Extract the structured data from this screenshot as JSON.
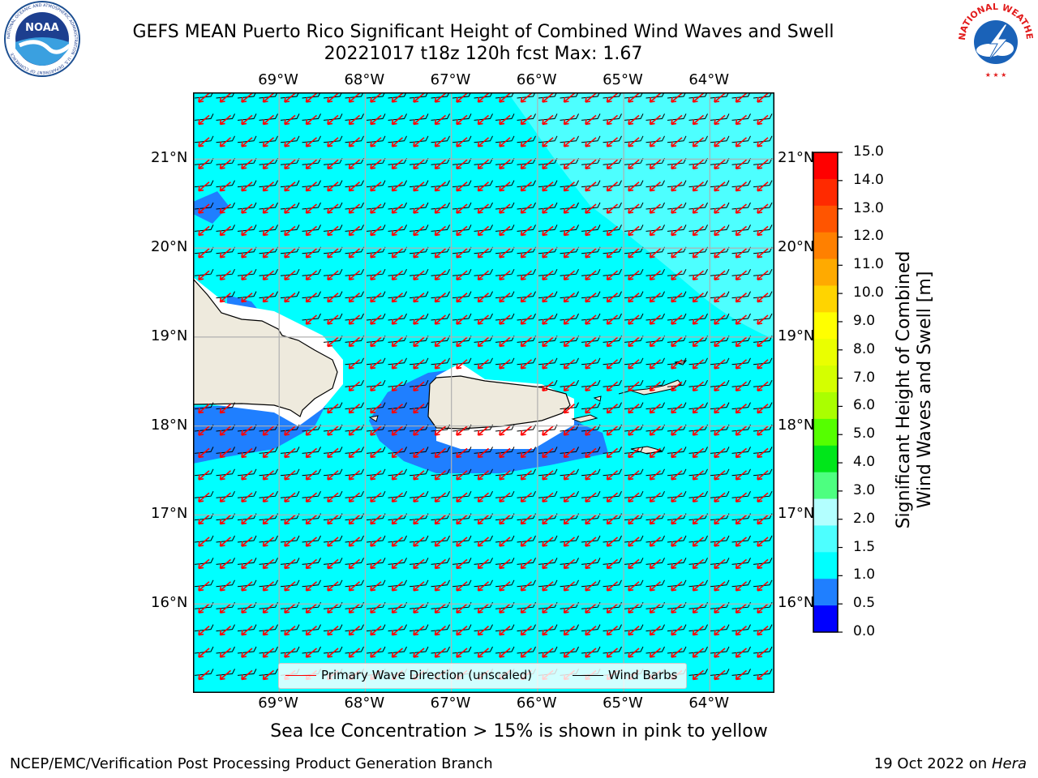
{
  "header": {
    "title_line1": "GEFS MEAN Puerto Rico Significant Height of Combined Wind Waves and Swell",
    "title_line2": "20221017 t18z 120h fcst   Max: 1.67"
  },
  "logos": {
    "noaa_text": "NOAA",
    "noaa_ring_text": "NATIONAL OCEANIC AND ATMOSPHERIC ADMINISTRATION · U.S. DEPARTMENT OF COMMERCE",
    "nws_ring_text": "NATIONAL WEATHER SERVICE"
  },
  "map": {
    "lon_labels": [
      "69°W",
      "68°W",
      "67°W",
      "66°W",
      "65°W",
      "64°W"
    ],
    "lat_labels": [
      "21°N",
      "20°N",
      "19°N",
      "18°N",
      "17°N",
      "16°N"
    ],
    "lon_values": [
      -69,
      -68,
      -67,
      -66,
      -65,
      -64
    ],
    "lat_values": [
      21,
      20,
      19,
      18,
      17,
      16
    ],
    "extent": {
      "lon_min": -70.0,
      "lon_max": -63.25,
      "lat_min": 15.0,
      "lat_max": 21.75
    },
    "vector_direction": "toward southwest",
    "legend": {
      "primary_wave": "Primary Wave Direction (unscaled)",
      "wind_barbs": "Wind Barbs"
    },
    "colors": {
      "ocean_main": "#00ffff",
      "ocean_high": "#4dffff",
      "ocean_low": "#1f7fff",
      "land": "#eeeadd",
      "arrow": "#ff0000",
      "barb": "#000000"
    }
  },
  "colorbar": {
    "label_line1": "Significant Height of Combined",
    "label_line2": "Wind Waves and Swell [m]",
    "ticks": [
      "15.0",
      "14.0",
      "13.0",
      "12.0",
      "11.0",
      "10.0",
      "9.0",
      "8.0",
      "7.0",
      "6.0",
      "5.0",
      "4.0",
      "3.0",
      "2.0",
      "1.5",
      "1.0",
      "0.5",
      "0.0"
    ],
    "colors_top_to_bottom": [
      "#ff0000",
      "#ff2a00",
      "#ff5500",
      "#ff8000",
      "#ffaa00",
      "#ffd400",
      "#ffff00",
      "#eaff00",
      "#d4ff00",
      "#aaff00",
      "#55ff00",
      "#00e61a",
      "#4dff80",
      "#b3ffff",
      "#4dffff",
      "#00ffff",
      "#1f7fff",
      "#0000ff"
    ]
  },
  "footer": {
    "note": "Sea Ice Concentration > 15% is shown in pink to yellow",
    "left": "NCEP/EMC/Verification Post Processing Product Generation Branch",
    "right_prefix": "19 Oct 2022 on ",
    "right_host": "Hera"
  }
}
